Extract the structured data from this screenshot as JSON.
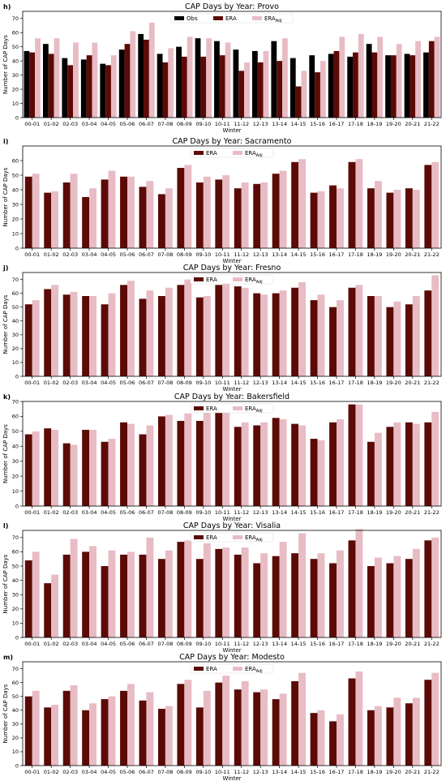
{
  "colors": {
    "obs": "#000000",
    "era": "#5c0a06",
    "era_adj": "#e8bcc4"
  },
  "chart_data": [
    {
      "type": "bar",
      "panel_label": "h)",
      "title": "CAP Days by Year: Provo",
      "xlabel": "Winter",
      "ylabel": "Number of CAP Days",
      "ylim": [
        0,
        75
      ],
      "yticks": [
        0,
        10,
        20,
        30,
        40,
        50,
        60,
        70
      ],
      "legend": "top-center",
      "categories": [
        "00-01",
        "01-02",
        "02-03",
        "03-04",
        "04-05",
        "05-06",
        "06-07",
        "07-08",
        "08-09",
        "09-10",
        "10-11",
        "11-12",
        "12-13",
        "13-14",
        "14-15",
        "15-16",
        "16-17",
        "17-18",
        "18-19",
        "19-20",
        "20-21",
        "21-22"
      ],
      "series": [
        {
          "name": "Obs",
          "color_key": "obs",
          "values": [
            47,
            52,
            42,
            41,
            38,
            48,
            59,
            45,
            50,
            56,
            54,
            48,
            47,
            54,
            42,
            44,
            45,
            43,
            52,
            44,
            45,
            46
          ]
        },
        {
          "name": "ERA",
          "color_key": "era",
          "values": [
            46,
            45,
            37,
            44,
            37,
            52,
            55,
            39,
            43,
            43,
            44,
            33,
            39,
            40,
            22,
            32,
            47,
            46,
            46,
            44,
            44,
            54
          ]
        },
        {
          "name": "ERA",
          "name_sub": "Adj",
          "color_key": "era_adj",
          "values": [
            56,
            56,
            53,
            53,
            44,
            61,
            67,
            49,
            57,
            56,
            53,
            39,
            47,
            56,
            33,
            40,
            57,
            59,
            57,
            52,
            54,
            57
          ]
        }
      ]
    },
    {
      "type": "bar",
      "panel_label": "i)",
      "title": "CAP Days by Year: Sacramento",
      "xlabel": "Winter",
      "ylabel": "Number of CAP Days",
      "ylim": [
        0,
        70
      ],
      "yticks": [
        0,
        10,
        20,
        30,
        40,
        50,
        60
      ],
      "legend": "top-center",
      "categories": [
        "00-01",
        "01-02",
        "02-03",
        "03-04",
        "04-05",
        "05-06",
        "06-07",
        "07-08",
        "08-09",
        "09-10",
        "10-11",
        "11-12",
        "12-13",
        "13-14",
        "14-15",
        "15-16",
        "16-17",
        "17-18",
        "18-19",
        "19-20",
        "20-21",
        "21-22"
      ],
      "series": [
        {
          "name": "ERA",
          "color_key": "era",
          "values": [
            49,
            38,
            45,
            35,
            47,
            49,
            42,
            37,
            55,
            45,
            47,
            41,
            44,
            51,
            59,
            38,
            43,
            59,
            41,
            38,
            41,
            57
          ]
        },
        {
          "name": "ERA",
          "name_sub": "Adj",
          "color_key": "era_adj",
          "values": [
            51,
            39,
            51,
            41,
            53,
            49,
            46,
            41,
            57,
            49,
            50,
            45,
            45,
            53,
            61,
            39,
            41,
            61,
            46,
            40,
            40,
            59
          ]
        }
      ]
    },
    {
      "type": "bar",
      "panel_label": "j)",
      "title": "CAP Days by Year: Fresno",
      "xlabel": "Winter",
      "ylabel": "Number of CAP Days",
      "ylim": [
        0,
        75
      ],
      "yticks": [
        0,
        10,
        20,
        30,
        40,
        50,
        60,
        70
      ],
      "legend": "top-center",
      "categories": [
        "00-01",
        "01-02",
        "02-03",
        "03-04",
        "04-05",
        "05-06",
        "06-07",
        "07-08",
        "08-09",
        "09-10",
        "10-11",
        "11-12",
        "12-13",
        "13-14",
        "14-15",
        "15-16",
        "16-17",
        "17-18",
        "18-19",
        "19-20",
        "20-21",
        "21-22"
      ],
      "series": [
        {
          "name": "ERA",
          "color_key": "era",
          "values": [
            52,
            63,
            59,
            58,
            52,
            66,
            56,
            58,
            66,
            57,
            66,
            65,
            60,
            60,
            64,
            55,
            50,
            64,
            58,
            50,
            52,
            62
          ]
        },
        {
          "name": "ERA",
          "name_sub": "Adj",
          "color_key": "era_adj",
          "values": [
            55,
            66,
            61,
            58,
            60,
            69,
            62,
            64,
            70,
            58,
            70,
            64,
            59,
            62,
            68,
            59,
            55,
            66,
            58,
            54,
            58,
            73
          ]
        }
      ]
    },
    {
      "type": "bar",
      "panel_label": "k)",
      "title": "CAP Days by Year: Bakersfield",
      "xlabel": "Winter",
      "ylabel": "Number of CAP Days",
      "ylim": [
        0,
        70
      ],
      "yticks": [
        0,
        10,
        20,
        30,
        40,
        50,
        60,
        70
      ],
      "legend": "top-center",
      "categories": [
        "00-01",
        "01-02",
        "02-03",
        "03-04",
        "04-05",
        "05-06",
        "06-07",
        "07-08",
        "08-09",
        "09-10",
        "10-11",
        "11-12",
        "12-13",
        "13-14",
        "14-15",
        "15-16",
        "16-17",
        "17-18",
        "18-19",
        "19-20",
        "20-21",
        "21-22"
      ],
      "series": [
        {
          "name": "ERA",
          "color_key": "era",
          "values": [
            48,
            52,
            42,
            51,
            43,
            56,
            48,
            60,
            57,
            57,
            66,
            53,
            54,
            59,
            55,
            45,
            56,
            68,
            43,
            53,
            56,
            56
          ]
        },
        {
          "name": "ERA",
          "name_sub": "Adj",
          "color_key": "era_adj",
          "values": [
            50,
            51,
            41,
            51,
            45,
            55,
            54,
            61,
            62,
            64,
            68,
            56,
            56,
            58,
            54,
            44,
            58,
            68,
            49,
            56,
            55,
            63
          ]
        }
      ]
    },
    {
      "type": "bar",
      "panel_label": "l)",
      "title": "CAP Days by Year: Visalia",
      "xlabel": "Winter",
      "ylabel": "Number of CAP Days",
      "ylim": [
        0,
        75
      ],
      "yticks": [
        0,
        10,
        20,
        30,
        40,
        50,
        60,
        70
      ],
      "legend": "top-center",
      "categories": [
        "00-01",
        "01-02",
        "02-03",
        "03-04",
        "04-05",
        "05-06",
        "06-07",
        "07-08",
        "08-09",
        "09-10",
        "10-11",
        "11-12",
        "12-13",
        "13-14",
        "14-15",
        "15-16",
        "16-17",
        "17-18",
        "18-19",
        "19-20",
        "20-21",
        "21-22"
      ],
      "series": [
        {
          "name": "ERA",
          "color_key": "era",
          "values": [
            54,
            38,
            58,
            60,
            50,
            58,
            58,
            55,
            67,
            55,
            62,
            58,
            52,
            57,
            59,
            55,
            52,
            68,
            50,
            52,
            55,
            68
          ]
        },
        {
          "name": "ERA",
          "name_sub": "Adj",
          "color_key": "era_adj",
          "values": [
            60,
            44,
            69,
            64,
            61,
            60,
            70,
            61,
            68,
            66,
            63,
            63,
            59,
            67,
            73,
            59,
            61,
            76,
            56,
            57,
            62,
            70
          ]
        }
      ]
    },
    {
      "type": "bar",
      "panel_label": "m)",
      "title": "CAP Days by Year: Modesto",
      "xlabel": "Winter",
      "ylabel": "Number of CAP Days",
      "ylim": [
        0,
        75
      ],
      "yticks": [
        0,
        10,
        20,
        30,
        40,
        50,
        60,
        70
      ],
      "legend": "top-center",
      "categories": [
        "00-01",
        "01-02",
        "02-03",
        "03-04",
        "04-05",
        "05-06",
        "06-07",
        "07-08",
        "08-09",
        "09-10",
        "10-11",
        "11-12",
        "12-13",
        "13-14",
        "14-15",
        "15-16",
        "16-17",
        "17-18",
        "18-19",
        "19-20",
        "20-21",
        "21-22"
      ],
      "series": [
        {
          "name": "ERA",
          "color_key": "era",
          "values": [
            50,
            42,
            54,
            40,
            48,
            54,
            47,
            41,
            59,
            42,
            60,
            55,
            53,
            48,
            61,
            38,
            32,
            63,
            40,
            42,
            45,
            62
          ]
        },
        {
          "name": "ERA",
          "name_sub": "Adj",
          "color_key": "era_adj",
          "values": [
            54,
            44,
            58,
            45,
            50,
            59,
            53,
            43,
            62,
            54,
            65,
            61,
            55,
            52,
            67,
            40,
            37,
            68,
            43,
            49,
            49,
            67
          ]
        }
      ]
    }
  ]
}
